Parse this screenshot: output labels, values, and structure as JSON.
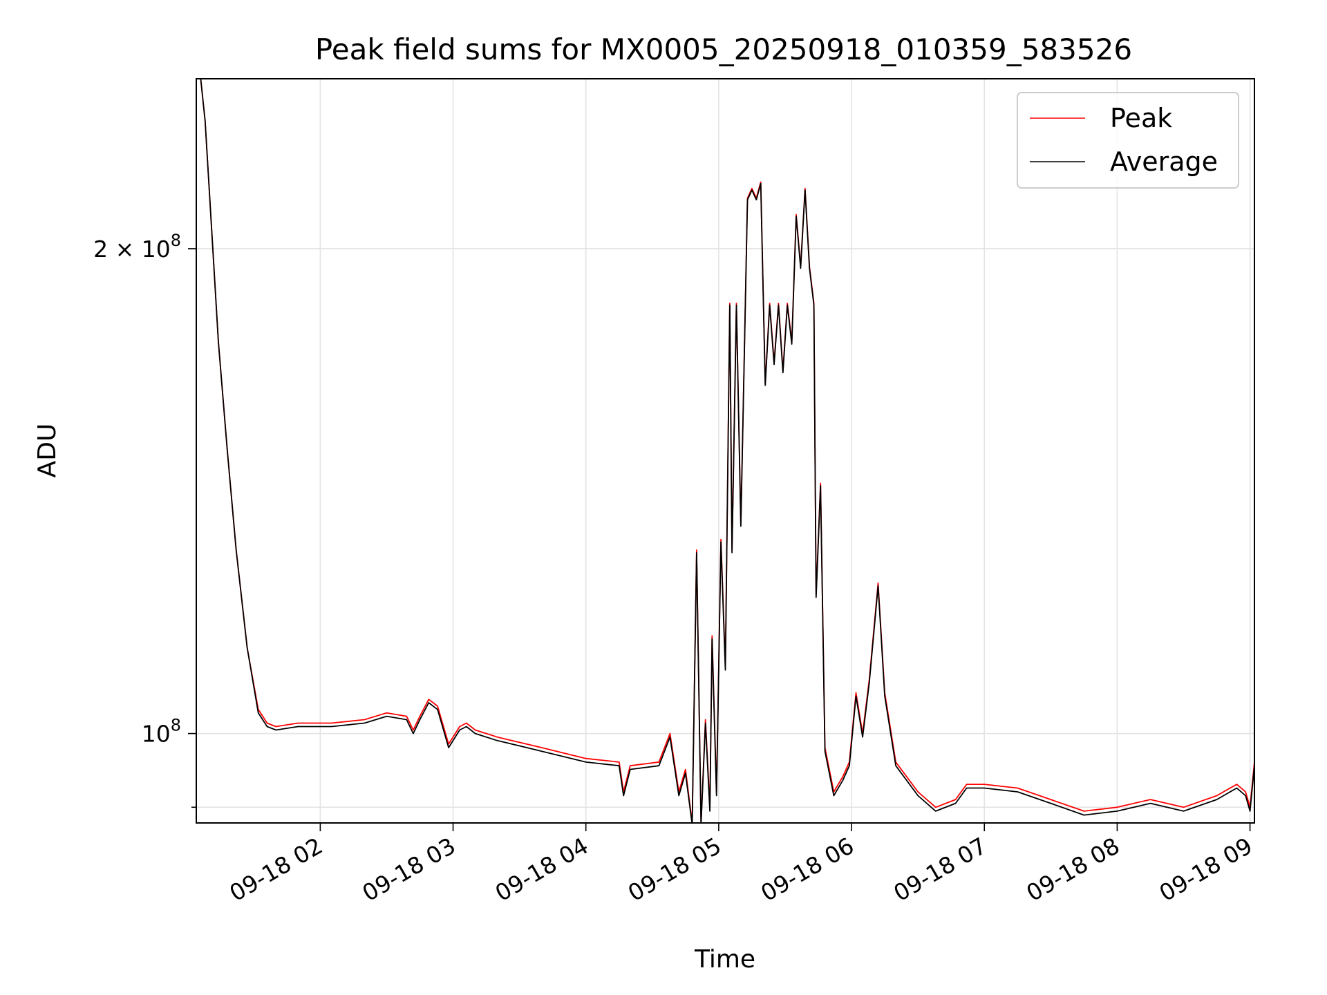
{
  "chart_data": {
    "type": "line",
    "title": "Peak field sums for MX0005_20250918_010359_583526",
    "xlabel": "Time",
    "ylabel": "ADU",
    "y_scale": "log",
    "ylim": [
      88000000,
      255000000
    ],
    "xlim": [
      "09-18 01:04",
      "09-18 09:02"
    ],
    "x_tick_labels": [
      "09-18 02",
      "09-18 03",
      "09-18 04",
      "09-18 05",
      "09-18 06",
      "09-18 07",
      "09-18 08",
      "09-18 09"
    ],
    "x_ticks": [
      "09-18 02:00",
      "09-18 03:00",
      "09-18 04:00",
      "09-18 05:00",
      "09-18 06:00",
      "09-18 07:00",
      "09-18 08:00",
      "09-18 09:00"
    ],
    "y_major_ticks": [
      {
        "value": 100000000,
        "base": "10",
        "exponent": "8",
        "prefix": ""
      },
      {
        "value": 200000000,
        "base": "10",
        "exponent": "8",
        "prefix": "2 × "
      }
    ],
    "y_minor_ticks": [
      90000000
    ],
    "grid": true,
    "legend": {
      "position": "top-right",
      "entries": [
        "Peak",
        "Average"
      ]
    },
    "series": [
      {
        "name": "Peak",
        "color": "#ff0000",
        "x": [
          "09-18 01:04",
          "09-18 01:06",
          "09-18 01:08",
          "09-18 01:11",
          "09-18 01:14",
          "09-18 01:18",
          "09-18 01:22",
          "09-18 01:27",
          "09-18 01:32",
          "09-18 01:36",
          "09-18 01:40",
          "09-18 01:50",
          "09-18 02:05",
          "09-18 02:20",
          "09-18 02:30",
          "09-18 02:39",
          "09-18 02:42",
          "09-18 02:45",
          "09-18 02:49",
          "09-18 02:53",
          "09-18 02:58",
          "09-18 03:03",
          "09-18 03:06",
          "09-18 03:10",
          "09-18 03:20",
          "09-18 03:40",
          "09-18 04:00",
          "09-18 04:15",
          "09-18 04:17",
          "09-18 04:20",
          "09-18 04:33",
          "09-18 04:38",
          "09-18 04:42",
          "09-18 04:45",
          "09-18 04:48",
          "09-18 04:50",
          "09-18 04:52",
          "09-18 04:54",
          "09-18 04:56",
          "09-18 04:57",
          "09-18 04:59",
          "09-18 05:01",
          "09-18 05:03",
          "09-18 05:05",
          "09-18 05:06",
          "09-18 05:08",
          "09-18 05:10",
          "09-18 05:13",
          "09-18 05:15",
          "09-18 05:17",
          "09-18 05:19",
          "09-18 05:21",
          "09-18 05:23",
          "09-18 05:25",
          "09-18 05:27",
          "09-18 05:29",
          "09-18 05:31",
          "09-18 05:33",
          "09-18 05:35",
          "09-18 05:37",
          "09-18 05:39",
          "09-18 05:41",
          "09-18 05:43",
          "09-18 05:44",
          "09-18 05:46",
          "09-18 05:48",
          "09-18 05:52",
          "09-18 05:56",
          "09-18 05:59",
          "09-18 06:02",
          "09-18 06:05",
          "09-18 06:08",
          "09-18 06:12",
          "09-18 06:15",
          "09-18 06:20",
          "09-18 06:30",
          "09-18 06:38",
          "09-18 06:47",
          "09-18 06:52",
          "09-18 07:00",
          "09-18 07:15",
          "09-18 07:30",
          "09-18 07:45",
          "09-18 08:00",
          "09-18 08:15",
          "09-18 08:30",
          "09-18 08:45",
          "09-18 08:54",
          "09-18 08:58",
          "09-18 09:00",
          "09-18 09:02"
        ],
        "values": [
          255000000,
          255000000,
          240000000,
          205000000,
          175000000,
          150000000,
          130000000,
          113000000,
          103500000,
          101500000,
          101000000,
          101500000,
          101500000,
          102000000,
          103000000,
          102500000,
          100500000,
          102500000,
          105000000,
          104000000,
          98500000,
          101000000,
          101500000,
          100500000,
          99500000,
          98000000,
          96500000,
          96000000,
          92000000,
          95500000,
          96000000,
          100000000,
          92000000,
          95000000,
          88000000,
          130000000,
          88000000,
          102000000,
          90000000,
          115000000,
          92000000,
          132000000,
          110000000,
          185000000,
          130000000,
          185000000,
          135000000,
          215000000,
          218000000,
          215000000,
          220000000,
          165000000,
          185000000,
          170000000,
          185000000,
          168000000,
          185000000,
          175000000,
          210000000,
          195000000,
          218000000,
          195000000,
          185000000,
          122000000,
          143000000,
          98000000,
          92000000,
          94000000,
          96000000,
          106000000,
          100000000,
          108000000,
          124000000,
          106000000,
          96000000,
          92000000,
          90000000,
          91000000,
          93000000,
          93000000,
          92500000,
          91000000,
          89500000,
          90000000,
          91000000,
          90000000,
          91500000,
          93000000,
          92000000,
          90000000,
          96000000
        ]
      },
      {
        "name": "Average",
        "color": "#000000",
        "x": [
          "09-18 01:04",
          "09-18 01:06",
          "09-18 01:08",
          "09-18 01:11",
          "09-18 01:14",
          "09-18 01:18",
          "09-18 01:22",
          "09-18 01:27",
          "09-18 01:32",
          "09-18 01:36",
          "09-18 01:40",
          "09-18 01:50",
          "09-18 02:05",
          "09-18 02:20",
          "09-18 02:30",
          "09-18 02:39",
          "09-18 02:42",
          "09-18 02:45",
          "09-18 02:49",
          "09-18 02:53",
          "09-18 02:58",
          "09-18 03:03",
          "09-18 03:06",
          "09-18 03:10",
          "09-18 03:20",
          "09-18 03:40",
          "09-18 04:00",
          "09-18 04:15",
          "09-18 04:17",
          "09-18 04:20",
          "09-18 04:33",
          "09-18 04:38",
          "09-18 04:42",
          "09-18 04:45",
          "09-18 04:48",
          "09-18 04:50",
          "09-18 04:52",
          "09-18 04:54",
          "09-18 04:56",
          "09-18 04:57",
          "09-18 04:59",
          "09-18 05:01",
          "09-18 05:03",
          "09-18 05:05",
          "09-18 05:06",
          "09-18 05:08",
          "09-18 05:10",
          "09-18 05:13",
          "09-18 05:15",
          "09-18 05:17",
          "09-18 05:19",
          "09-18 05:21",
          "09-18 05:23",
          "09-18 05:25",
          "09-18 05:27",
          "09-18 05:29",
          "09-18 05:31",
          "09-18 05:33",
          "09-18 05:35",
          "09-18 05:37",
          "09-18 05:39",
          "09-18 05:41",
          "09-18 05:43",
          "09-18 05:44",
          "09-18 05:46",
          "09-18 05:48",
          "09-18 05:52",
          "09-18 05:56",
          "09-18 05:59",
          "09-18 06:02",
          "09-18 06:05",
          "09-18 06:08",
          "09-18 06:12",
          "09-18 06:15",
          "09-18 06:20",
          "09-18 06:30",
          "09-18 06:38",
          "09-18 06:47",
          "09-18 06:52",
          "09-18 07:00",
          "09-18 07:15",
          "09-18 07:30",
          "09-18 07:45",
          "09-18 08:00",
          "09-18 08:15",
          "09-18 08:30",
          "09-18 08:45",
          "09-18 08:54",
          "09-18 08:58",
          "09-18 09:00",
          "09-18 09:02"
        ],
        "values": [
          255000000,
          255000000,
          240000000,
          205000000,
          175000000,
          150000000,
          130000000,
          113000000,
          103000000,
          101000000,
          100500000,
          101000000,
          101000000,
          101500000,
          102500000,
          102000000,
          100000000,
          102000000,
          104500000,
          103500000,
          98000000,
          100500000,
          101000000,
          100000000,
          99000000,
          97500000,
          96000000,
          95500000,
          91500000,
          95000000,
          95500000,
          99500000,
          91500000,
          94500000,
          87800000,
          129500000,
          87800000,
          101500000,
          89500000,
          114500000,
          91500000,
          131500000,
          109500000,
          184500000,
          129500000,
          184500000,
          134500000,
          214500000,
          217500000,
          214500000,
          219500000,
          164500000,
          184500000,
          169500000,
          184500000,
          167500000,
          184500000,
          174500000,
          209500000,
          194500000,
          217500000,
          194500000,
          184500000,
          121500000,
          142500000,
          97500000,
          91500000,
          93500000,
          95500000,
          105500000,
          99500000,
          107500000,
          123500000,
          105500000,
          95500000,
          91500000,
          89500000,
          90500000,
          92500000,
          92500000,
          92000000,
          90500000,
          89000000,
          89500000,
          90500000,
          89500000,
          91000000,
          92500000,
          91500000,
          89500000,
          95500000
        ]
      }
    ]
  }
}
